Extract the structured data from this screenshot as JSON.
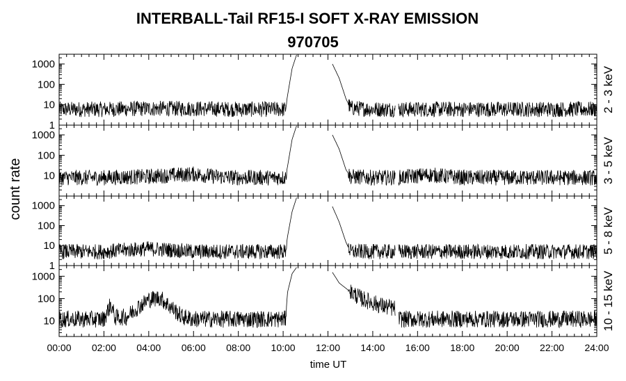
{
  "chart_data": {
    "type": "line",
    "title": "INTERBALL-Tail RF15-I SOFT X-RAY EMISSION",
    "subtitle": "970705",
    "xlabel": "time UT",
    "ylabel": "count rate",
    "yscale": "log",
    "xlim_hours": [
      0,
      24
    ],
    "x_ticks": [
      "00:00",
      "02:00",
      "04:00",
      "06:00",
      "08:00",
      "10:00",
      "12:00",
      "14:00",
      "16:00",
      "18:00",
      "20:00",
      "22:00",
      "24:00"
    ],
    "grid": false,
    "panels": [
      {
        "name": "2 - 3 keV",
        "ylim": [
          1,
          3000
        ],
        "y_ticks": [
          "1",
          "10",
          "100",
          "1000"
        ],
        "points": [
          [
            0,
            6
          ],
          [
            2,
            6
          ],
          [
            4,
            6.5
          ],
          [
            6,
            6.5
          ],
          [
            8,
            6
          ],
          [
            10,
            6
          ],
          [
            10.1,
            6
          ],
          [
            10.2,
            30
          ],
          [
            10.4,
            600
          ],
          [
            10.6,
            2800
          ],
          [
            12.2,
            1000
          ],
          [
            12.5,
            200
          ],
          [
            12.8,
            20
          ],
          [
            13.0,
            7
          ],
          [
            14,
            6
          ],
          [
            15.0,
            6
          ],
          [
            15.15,
            6
          ],
          [
            16,
            6
          ],
          [
            18,
            6
          ],
          [
            20,
            6
          ],
          [
            22,
            6
          ],
          [
            24,
            6
          ]
        ],
        "gap_after": [
          10.6,
          15.0
        ]
      },
      {
        "name": "3 - 5 keV",
        "ylim": [
          1,
          3000
        ],
        "y_ticks": [
          "10",
          "100",
          "1000"
        ],
        "points": [
          [
            0,
            8
          ],
          [
            2,
            8
          ],
          [
            4,
            9
          ],
          [
            6,
            12
          ],
          [
            7,
            9
          ],
          [
            8,
            8
          ],
          [
            10,
            8
          ],
          [
            10.1,
            8
          ],
          [
            10.2,
            30
          ],
          [
            10.4,
            600
          ],
          [
            10.6,
            2800
          ],
          [
            12.2,
            1000
          ],
          [
            12.5,
            200
          ],
          [
            12.8,
            20
          ],
          [
            13.0,
            9
          ],
          [
            14,
            8
          ],
          [
            15.0,
            8
          ],
          [
            15.15,
            8
          ],
          [
            16.5,
            11
          ],
          [
            18,
            8
          ],
          [
            20,
            8
          ],
          [
            22,
            8
          ],
          [
            24,
            8
          ]
        ],
        "gap_after": [
          10.6,
          15.0
        ]
      },
      {
        "name": "5 - 8 keV",
        "ylim": [
          1,
          3000
        ],
        "y_ticks": [
          "1",
          "10",
          "100",
          "1000"
        ],
        "points": [
          [
            0,
            5
          ],
          [
            2,
            5
          ],
          [
            3,
            6
          ],
          [
            4,
            7
          ],
          [
            5,
            6
          ],
          [
            6,
            5
          ],
          [
            8,
            5
          ],
          [
            10,
            5
          ],
          [
            10.1,
            5
          ],
          [
            10.2,
            30
          ],
          [
            10.4,
            500
          ],
          [
            10.6,
            2500
          ],
          [
            12.2,
            900
          ],
          [
            12.5,
            150
          ],
          [
            12.8,
            15
          ],
          [
            13.0,
            5
          ],
          [
            14,
            5
          ],
          [
            15.0,
            5
          ],
          [
            15.15,
            5
          ],
          [
            16,
            5
          ],
          [
            18,
            5
          ],
          [
            20,
            5
          ],
          [
            22,
            5
          ],
          [
            24,
            5
          ]
        ],
        "gap_after": [
          10.6,
          15.0
        ]
      },
      {
        "name": "10 - 15 keV",
        "ylim": [
          2,
          3000
        ],
        "y_ticks": [
          "10",
          "100",
          "1000"
        ],
        "points": [
          [
            0,
            12
          ],
          [
            2,
            12
          ],
          [
            2.3,
            55
          ],
          [
            2.5,
            14
          ],
          [
            3,
            15
          ],
          [
            3.5,
            40
          ],
          [
            4,
            90
          ],
          [
            4.5,
            110
          ],
          [
            5,
            40
          ],
          [
            5.5,
            15
          ],
          [
            6,
            12
          ],
          [
            8,
            12
          ],
          [
            10,
            12
          ],
          [
            10.1,
            12
          ],
          [
            10.2,
            200
          ],
          [
            10.4,
            1300
          ],
          [
            10.6,
            2500
          ],
          [
            12.2,
            1500
          ],
          [
            12.5,
            500
          ],
          [
            13,
            200
          ],
          [
            13.5,
            100
          ],
          [
            14,
            65
          ],
          [
            14.5,
            45
          ],
          [
            15.0,
            35
          ],
          [
            15.15,
            12
          ],
          [
            16,
            12
          ],
          [
            18,
            12
          ],
          [
            20,
            12
          ],
          [
            22,
            12
          ],
          [
            24,
            12
          ]
        ],
        "gap_after": [
          10.6,
          15.0
        ]
      }
    ]
  }
}
